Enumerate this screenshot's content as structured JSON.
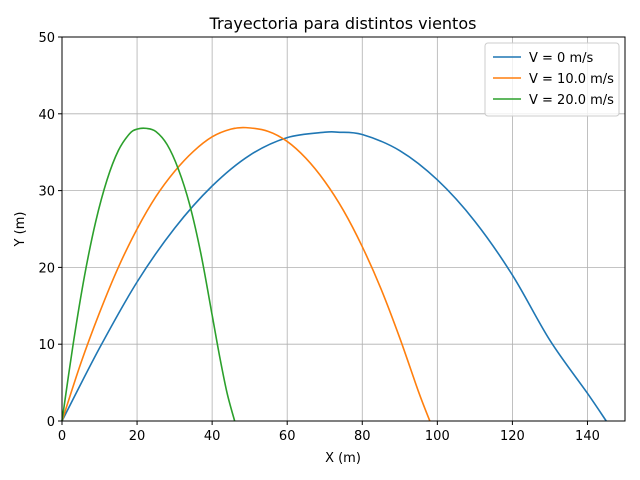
{
  "chart_data": {
    "type": "line",
    "title": "Trayectoria para distintos vientos",
    "xlabel": "X (m)",
    "ylabel": "Y (m)",
    "xlim": [
      0,
      150
    ],
    "ylim": [
      0,
      50
    ],
    "xticks": [
      "0",
      "20",
      "40",
      "60",
      "80",
      "100",
      "120",
      "140"
    ],
    "yticks": [
      "0",
      "10",
      "20",
      "30",
      "40",
      "50"
    ],
    "grid": true,
    "legend_position": "top-right",
    "series": [
      {
        "name": "V = 0 m/s",
        "color": "#1f77b4",
        "x": [
          0,
          10,
          20,
          30,
          40,
          50,
          60,
          70,
          73.5,
          80,
          90,
          100,
          110,
          120,
          130,
          140,
          145
        ],
        "y": [
          0,
          9.5,
          18.1,
          25.1,
          30.6,
          34.6,
          36.9,
          37.6,
          37.6,
          37.3,
          35.2,
          31.4,
          26.0,
          19.0,
          10.5,
          3.6,
          0
        ]
      },
      {
        "name": "V = 10.0 m/s",
        "color": "#ff7f0e",
        "x": [
          0,
          5,
          10,
          15,
          20,
          25,
          30,
          35,
          40,
          45,
          49,
          55,
          60,
          65,
          70,
          75,
          80,
          85,
          90,
          95,
          98
        ],
        "y": [
          0,
          7.5,
          14.1,
          20.0,
          25.0,
          29.2,
          32.5,
          35.1,
          37.0,
          38.0,
          38.2,
          37.7,
          36.4,
          34.2,
          31.2,
          27.4,
          22.7,
          17.2,
          10.8,
          3.8,
          0
        ]
      },
      {
        "name": "V = 20.0 m/s",
        "color": "#2ca02c",
        "x": [
          0,
          3,
          6,
          9,
          12,
          15,
          18,
          20,
          22.5,
          25,
          28,
          31,
          34,
          37,
          40,
          42,
          44,
          46
        ],
        "y": [
          0,
          10.1,
          18.9,
          26.0,
          31.4,
          35.2,
          37.4,
          38.0,
          38.1,
          37.7,
          36.0,
          32.8,
          28.2,
          21.8,
          13.8,
          8.4,
          3.6,
          0
        ]
      }
    ]
  }
}
